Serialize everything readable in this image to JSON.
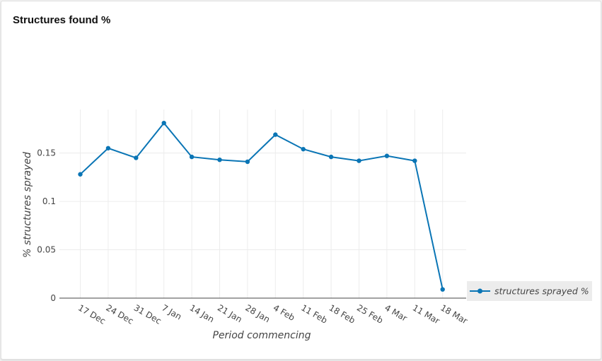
{
  "card": {
    "title": "Structures found %"
  },
  "chart_data": {
    "type": "line",
    "xlabel": "Period commencing",
    "ylabel": "% structures sprayed",
    "categories": [
      "17 Dec",
      "24 Dec",
      "31 Dec",
      "7 Jan",
      "14 Jan",
      "21 Jan",
      "28 Jan",
      "4 Feb",
      "11 Feb",
      "18 Feb",
      "25 Feb",
      "4 Mar",
      "11 Mar",
      "18 Mar"
    ],
    "series": [
      {
        "name": "structures sprayed %",
        "color": "#0a75b5",
        "values": [
          0.128,
          0.155,
          0.145,
          0.181,
          0.146,
          0.143,
          0.141,
          0.169,
          0.154,
          0.146,
          0.142,
          0.147,
          0.142,
          0.009
        ]
      }
    ],
    "ylim": [
      0,
      0.195
    ],
    "yticks": [
      0,
      0.05,
      0.1,
      0.15
    ],
    "ytick_labels": [
      "0",
      "0.05",
      "0.1",
      "0.15"
    ],
    "grid": true,
    "legend": "right"
  }
}
